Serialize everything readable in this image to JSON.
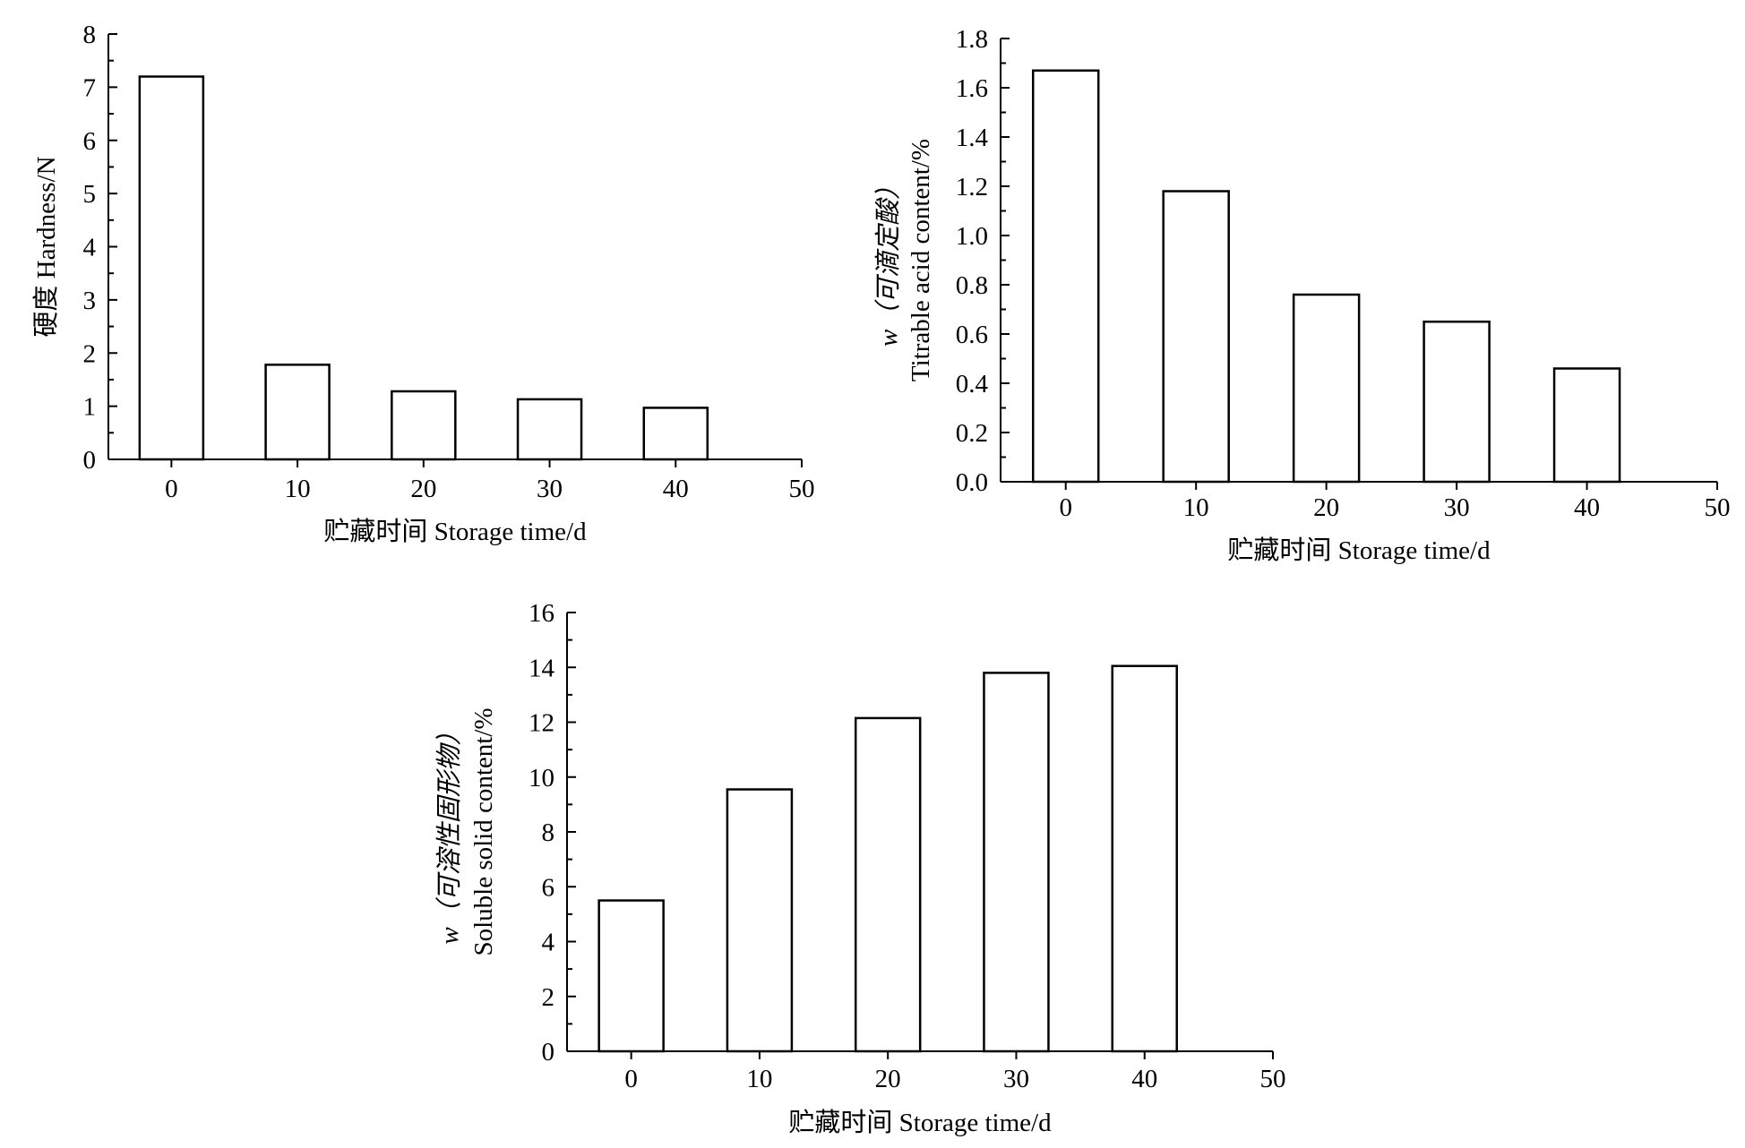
{
  "chart_data": [
    {
      "type": "bar",
      "title": "",
      "x": [
        0,
        10,
        20,
        30,
        40
      ],
      "values": [
        7.2,
        1.78,
        1.28,
        1.13,
        0.97
      ],
      "xlabel": "贮藏时间 Storage time/d",
      "ylabel": [
        "硬度 Hardness/N"
      ],
      "xlim": [
        -5,
        50
      ],
      "ylim": [
        0,
        8
      ],
      "xticks": [
        "0",
        "10",
        "20",
        "30",
        "40",
        "50"
      ],
      "yticks": [
        "0",
        "1",
        "2",
        "3",
        "4",
        "5",
        "6",
        "7",
        "8"
      ],
      "grid": false,
      "legend": "none"
    },
    {
      "type": "bar",
      "title": "",
      "x": [
        0,
        10,
        20,
        30,
        40
      ],
      "values": [
        1.67,
        1.18,
        0.76,
        0.65,
        0.46
      ],
      "xlabel": "贮藏时间 Storage time/d",
      "ylabel": [
        "w（可滴定酸）",
        "Titrable acid content/%"
      ],
      "xlim": [
        -5,
        50
      ],
      "ylim": [
        0,
        1.8
      ],
      "xticks": [
        "0",
        "10",
        "20",
        "30",
        "40",
        "50"
      ],
      "yticks": [
        "0.0",
        "0.2",
        "0.4",
        "0.6",
        "0.8",
        "1.0",
        "1.2",
        "1.4",
        "1.6",
        "1.8"
      ],
      "grid": false,
      "legend": "none"
    },
    {
      "type": "bar",
      "title": "",
      "x": [
        0,
        10,
        20,
        30,
        40
      ],
      "values": [
        5.5,
        9.55,
        12.15,
        13.8,
        14.05
      ],
      "xlabel": "贮藏时间 Storage time/d",
      "ylabel": [
        "w（可溶性固形物）",
        "Soluble solid content/%"
      ],
      "xlim": [
        -5,
        50
      ],
      "ylim": [
        0,
        16
      ],
      "xticks": [
        "0",
        "10",
        "20",
        "30",
        "40",
        "50"
      ],
      "yticks": [
        "0",
        "2",
        "4",
        "6",
        "8",
        "10",
        "12",
        "14",
        "16"
      ],
      "grid": false,
      "legend": "none"
    }
  ]
}
